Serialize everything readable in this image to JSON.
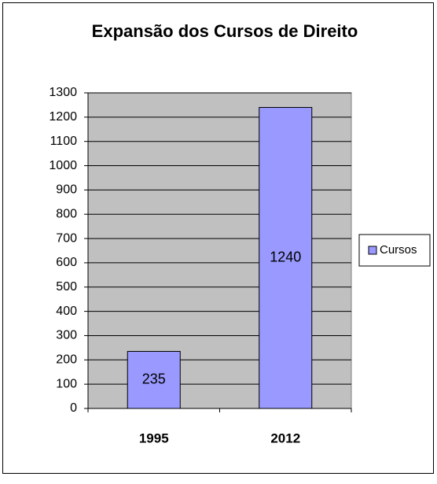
{
  "chart_data": {
    "type": "bar",
    "title": "Expansão dos Cursos de Direito",
    "categories": [
      "1995",
      "2012"
    ],
    "series": [
      {
        "name": "Cursos",
        "color": "#9999ff",
        "values": [
          235,
          1240
        ]
      }
    ],
    "ylim": [
      0,
      1300
    ],
    "yticks": [
      0,
      100,
      200,
      300,
      400,
      500,
      600,
      700,
      800,
      900,
      1000,
      1100,
      1200,
      1300
    ],
    "grid": true,
    "legend": "right",
    "plot_background": "#c0c0c0"
  }
}
